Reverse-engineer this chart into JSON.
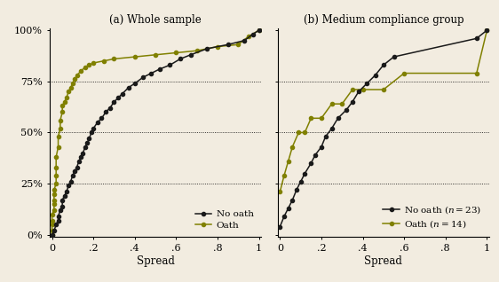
{
  "title_a": "(a) Whole sample",
  "title_b": "(b) Medium compliance group",
  "xlabel": "Spread",
  "ylabel_ticks": [
    "0%",
    "25%",
    "50%",
    "75%",
    "100%"
  ],
  "ytick_vals": [
    0,
    0.25,
    0.5,
    0.75,
    1.0
  ],
  "xtick_vals": [
    0,
    0.2,
    0.4,
    0.6,
    0.8,
    1.0
  ],
  "xtick_labels": [
    "0",
    ".2",
    ".4",
    ".6",
    ".8",
    "1"
  ],
  "color_black": "#1a1a1a",
  "color_olive": "#808000",
  "bg_color": "#f2ece0",
  "noath_whole_x": [
    0.0,
    0.01,
    0.02,
    0.03,
    0.03,
    0.04,
    0.05,
    0.05,
    0.06,
    0.07,
    0.08,
    0.09,
    0.1,
    0.11,
    0.12,
    0.13,
    0.14,
    0.15,
    0.16,
    0.17,
    0.18,
    0.19,
    0.2,
    0.22,
    0.24,
    0.26,
    0.28,
    0.3,
    0.32,
    0.34,
    0.37,
    0.4,
    0.44,
    0.48,
    0.52,
    0.57,
    0.62,
    0.67,
    0.75,
    0.85,
    0.93,
    0.97,
    1.0
  ],
  "noath_whole_y": [
    0.0,
    0.02,
    0.05,
    0.07,
    0.09,
    0.12,
    0.14,
    0.17,
    0.19,
    0.21,
    0.24,
    0.26,
    0.29,
    0.31,
    0.33,
    0.36,
    0.38,
    0.4,
    0.43,
    0.45,
    0.47,
    0.5,
    0.52,
    0.55,
    0.57,
    0.6,
    0.62,
    0.65,
    0.67,
    0.69,
    0.72,
    0.74,
    0.77,
    0.79,
    0.81,
    0.83,
    0.86,
    0.88,
    0.91,
    0.93,
    0.95,
    0.98,
    1.0
  ],
  "oath_whole_x": [
    0.0,
    0.0,
    0.0,
    0.0,
    0.0,
    0.01,
    0.01,
    0.01,
    0.01,
    0.01,
    0.02,
    0.02,
    0.02,
    0.02,
    0.03,
    0.03,
    0.04,
    0.04,
    0.05,
    0.05,
    0.06,
    0.07,
    0.08,
    0.09,
    0.1,
    0.11,
    0.12,
    0.14,
    0.16,
    0.18,
    0.2,
    0.25,
    0.3,
    0.4,
    0.5,
    0.6,
    0.7,
    0.8,
    0.9,
    0.95,
    1.0
  ],
  "oath_whole_y": [
    0.0,
    0.02,
    0.05,
    0.07,
    0.1,
    0.12,
    0.15,
    0.17,
    0.2,
    0.22,
    0.25,
    0.29,
    0.33,
    0.38,
    0.43,
    0.48,
    0.52,
    0.56,
    0.6,
    0.63,
    0.65,
    0.67,
    0.7,
    0.72,
    0.74,
    0.76,
    0.78,
    0.8,
    0.82,
    0.83,
    0.84,
    0.85,
    0.86,
    0.87,
    0.88,
    0.89,
    0.9,
    0.92,
    0.93,
    0.97,
    1.0
  ],
  "noath_med_x": [
    0.0,
    0.02,
    0.04,
    0.06,
    0.08,
    0.1,
    0.12,
    0.15,
    0.17,
    0.2,
    0.22,
    0.25,
    0.28,
    0.32,
    0.35,
    0.38,
    0.42,
    0.46,
    0.5,
    0.55,
    0.95,
    1.0
  ],
  "noath_med_y": [
    0.04,
    0.09,
    0.13,
    0.17,
    0.22,
    0.26,
    0.3,
    0.35,
    0.39,
    0.43,
    0.48,
    0.52,
    0.57,
    0.61,
    0.65,
    0.7,
    0.74,
    0.78,
    0.83,
    0.87,
    0.96,
    1.0
  ],
  "oath_med_x": [
    0.0,
    0.02,
    0.04,
    0.06,
    0.09,
    0.12,
    0.15,
    0.2,
    0.25,
    0.3,
    0.35,
    0.4,
    0.5,
    0.6,
    0.95,
    1.0
  ],
  "oath_med_y": [
    0.21,
    0.29,
    0.36,
    0.43,
    0.5,
    0.5,
    0.57,
    0.57,
    0.64,
    0.64,
    0.71,
    0.71,
    0.71,
    0.79,
    0.79,
    1.0
  ],
  "legend_a_entries": [
    "No oath",
    "Oath"
  ],
  "legend_b_labels": [
    "No oath ($n = 23$)",
    "Oath ($n = 14$)"
  ],
  "hlines": [
    0.25,
    0.5,
    0.75
  ]
}
